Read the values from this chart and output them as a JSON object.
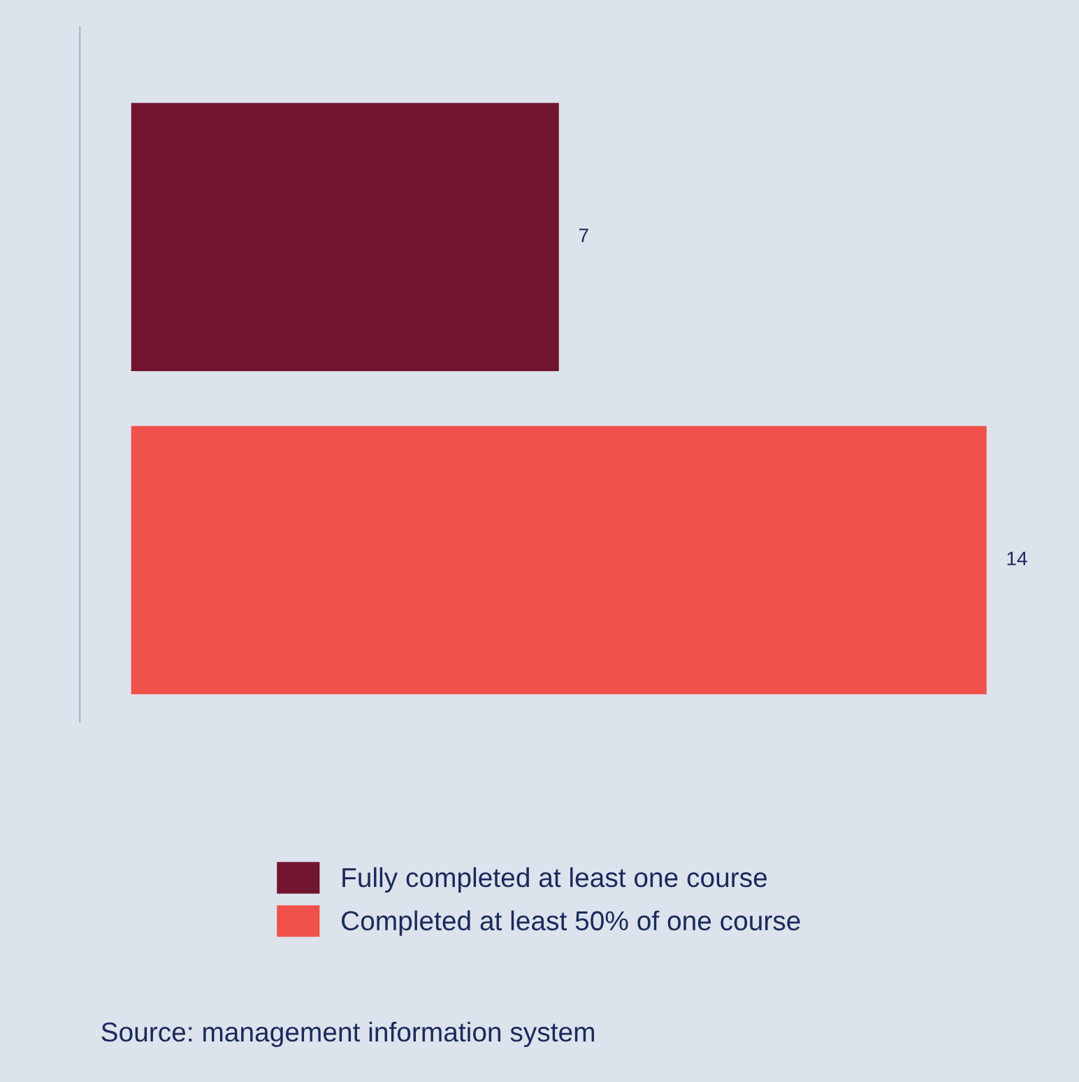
{
  "chart_data": {
    "type": "bar",
    "orientation": "horizontal",
    "stacked": true,
    "categories": [
      null,
      null
    ],
    "series": [
      {
        "name": "Fully completed at least one course",
        "color": "#721530",
        "values": [
          7,
          null
        ]
      },
      {
        "name": "Completed at least 50% of one course",
        "color": "#f0514b",
        "values": [
          null,
          14
        ]
      }
    ],
    "data_labels": true,
    "legend": "bottom",
    "grid": false,
    "tick_labels": false,
    "annotations": [
      "Source: management information system"
    ]
  }
}
